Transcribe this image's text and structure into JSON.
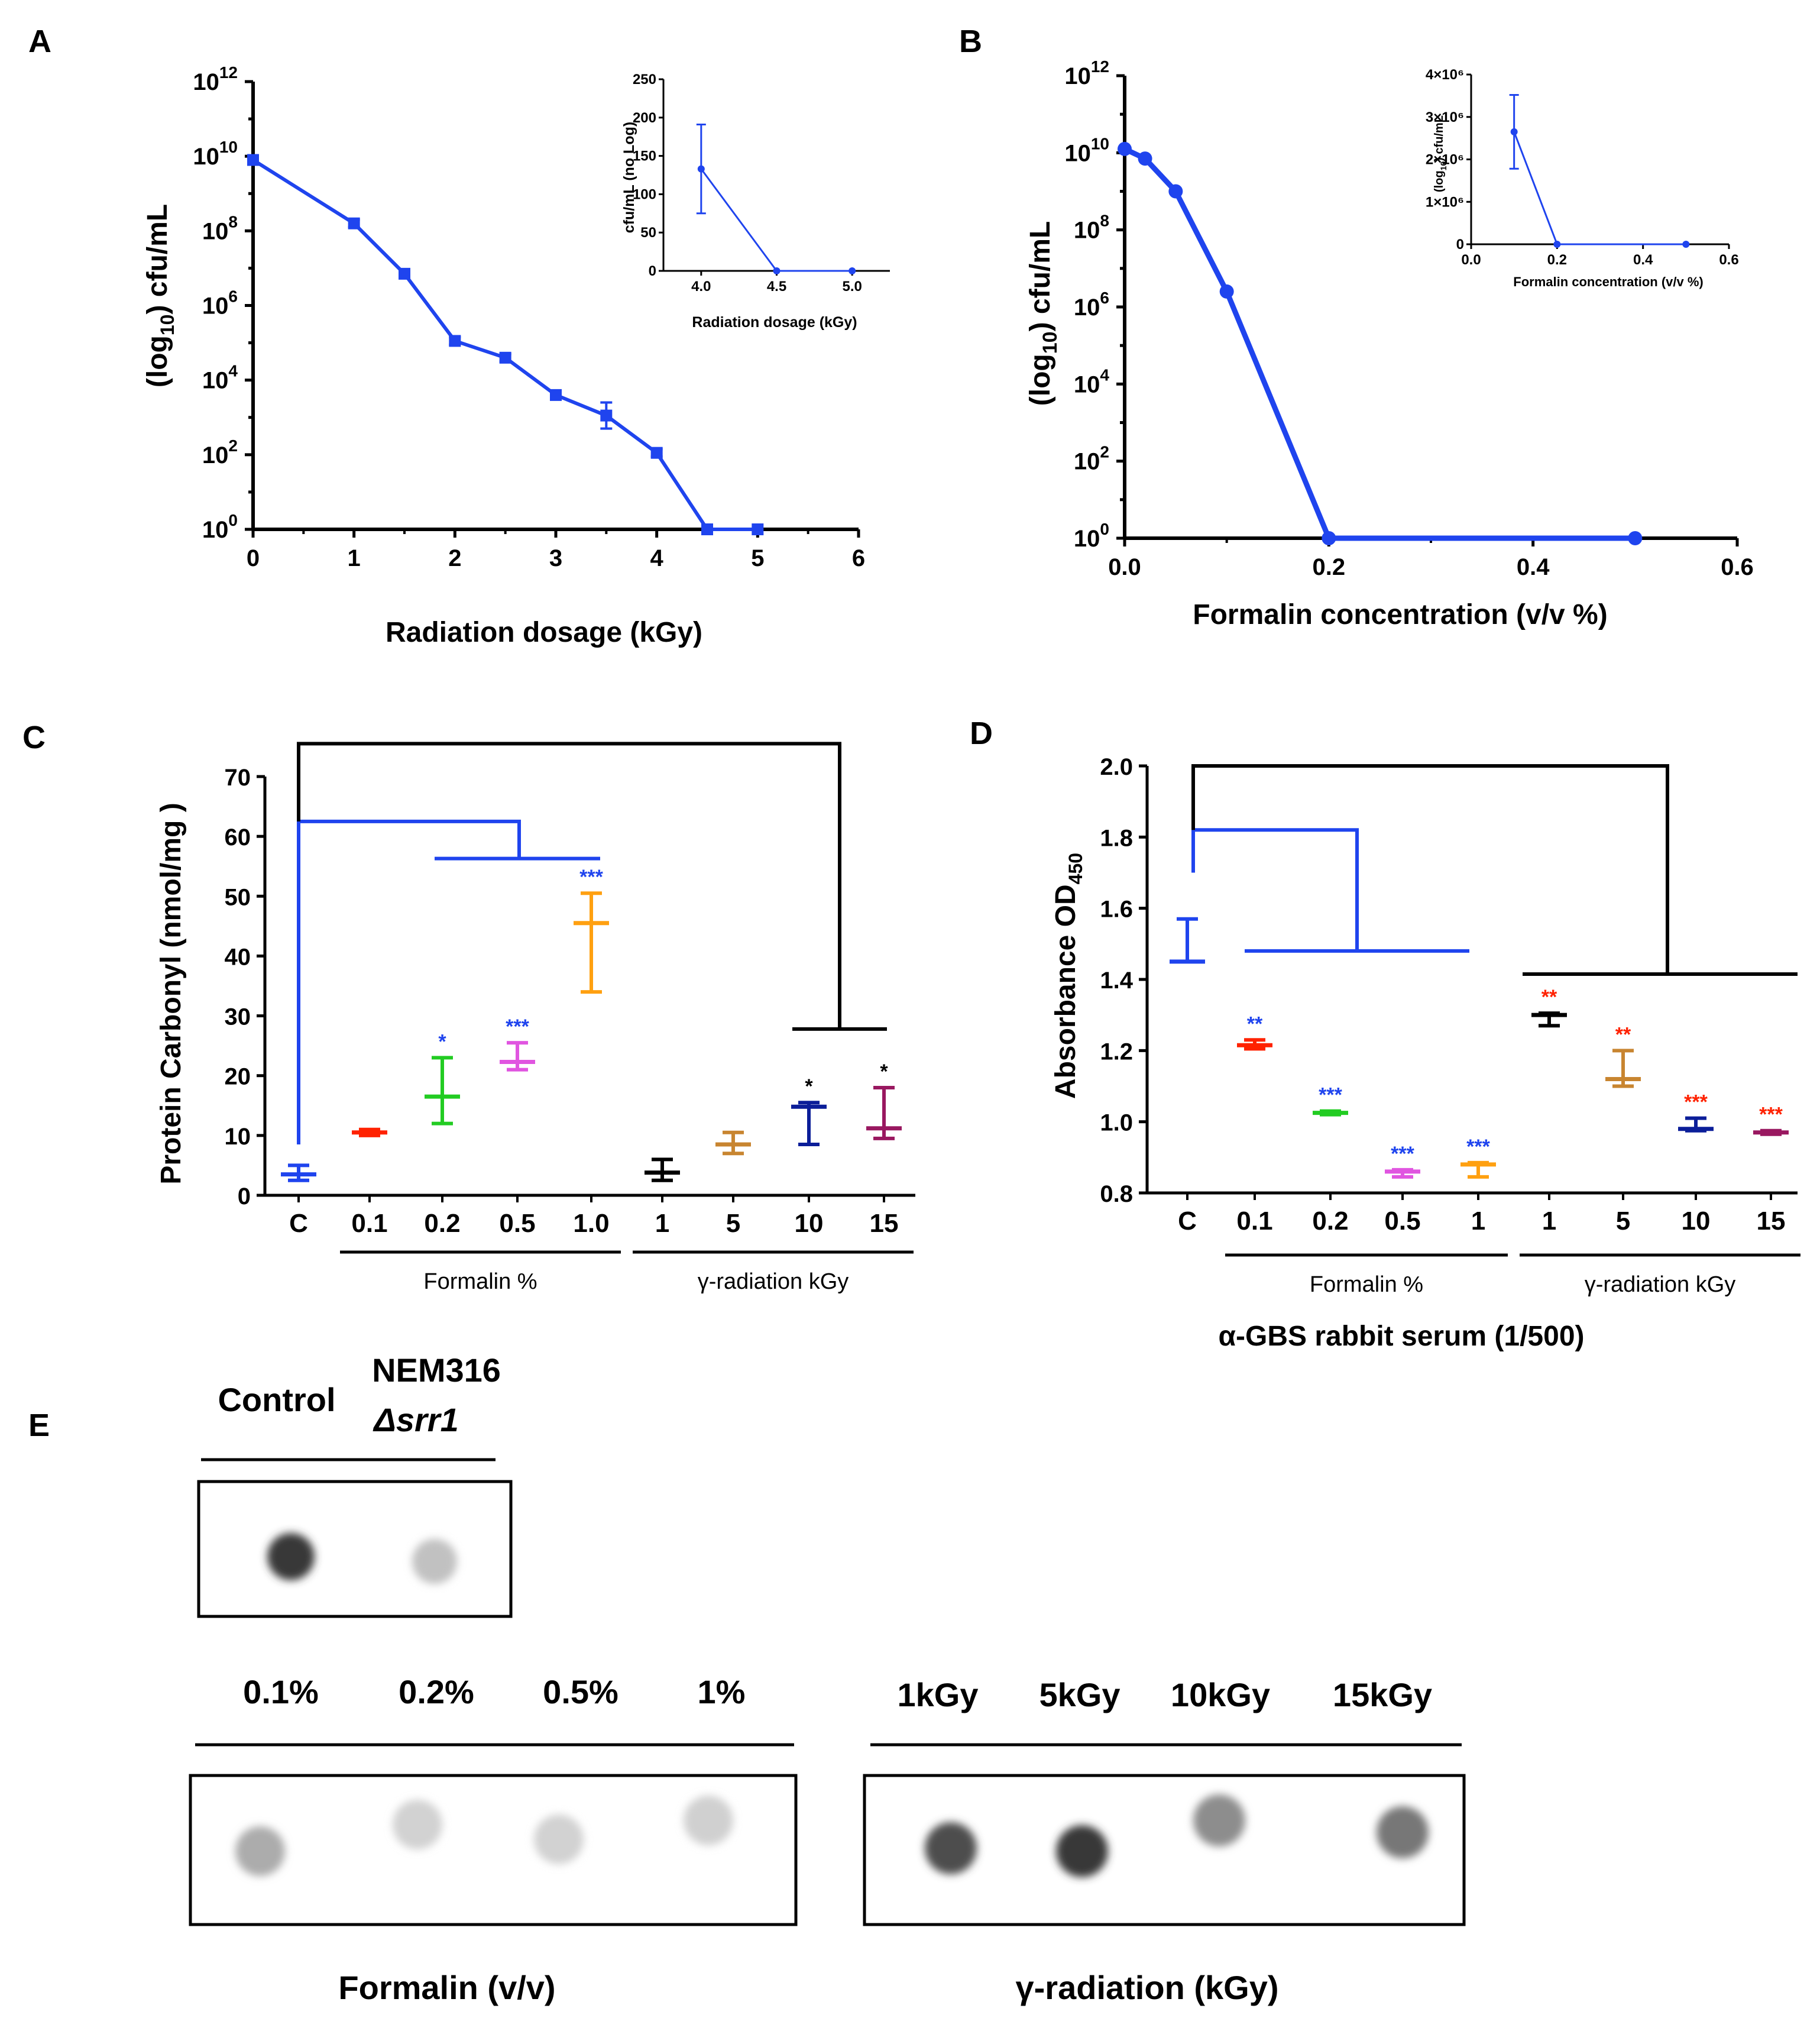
{
  "chart_data": [
    {
      "id": "A",
      "type": "line",
      "panel_label": "A",
      "xlabel": "Radiation dosage (kGy)",
      "ylabel": "(log10) cfu/mL",
      "yscale": "log",
      "xlim": [
        0,
        6
      ],
      "ylim_exponent": [
        0,
        12
      ],
      "x_ticks": [
        "0",
        "1",
        "2",
        "3",
        "4",
        "5",
        "6"
      ],
      "y_tick_exponents": [
        "0",
        "2",
        "4",
        "6",
        "8",
        "10",
        "12"
      ],
      "color": "#1f44ee",
      "x": [
        0,
        1,
        1.5,
        2,
        2.5,
        3,
        3.5,
        4,
        4.5,
        5
      ],
      "y_log10": [
        9.9,
        8.2,
        6.85,
        5.05,
        4.6,
        3.6,
        3.05,
        2.05,
        0,
        0
      ],
      "err_log10": [
        0,
        0.1,
        0.1,
        0.1,
        0.1,
        0.1,
        0.35,
        0.1,
        0,
        0
      ],
      "inset": {
        "type": "line",
        "xlabel": "Radiation dosage (kGy)",
        "ylabel": "cfu/mL (no Log)",
        "x": [
          4.0,
          4.5,
          5.0
        ],
        "y": [
          133,
          0,
          0
        ],
        "err": [
          58,
          0,
          0
        ],
        "xlim": [
          3.75,
          5.25
        ],
        "ylim": [
          0,
          250
        ],
        "x_ticks": [
          "4.0",
          "4.5",
          "5.0"
        ],
        "y_ticks": [
          "0",
          "50",
          "100",
          "150",
          "200",
          "250"
        ]
      }
    },
    {
      "id": "B",
      "type": "line",
      "panel_label": "B",
      "xlabel": "Formalin concentration (v/v %)",
      "ylabel": "(log10) cfu/mL",
      "yscale": "log",
      "xlim": [
        0,
        0.6
      ],
      "ylim_exponent": [
        0,
        12
      ],
      "x_ticks": [
        "0.0",
        "0.2",
        "0.4",
        "0.6"
      ],
      "y_tick_exponents": [
        "0",
        "2",
        "4",
        "6",
        "8",
        "10",
        "12"
      ],
      "color": "#1f44ee",
      "x": [
        0,
        0.02,
        0.05,
        0.1,
        0.2,
        0.5
      ],
      "y_log10": [
        10.1,
        9.85,
        9.0,
        6.4,
        0,
        0
      ],
      "inset": {
        "type": "line",
        "xlabel": "Formalin concentration (v/v %)",
        "ylabel": "(log10) cfu/mL",
        "x": [
          0.1,
          0.2,
          0.5
        ],
        "y": [
          2650000,
          0,
          0
        ],
        "err": [
          870000,
          0,
          0
        ],
        "xlim": [
          0,
          0.6
        ],
        "ylim": [
          0,
          4000000
        ],
        "x_ticks": [
          "0.0",
          "0.2",
          "0.4",
          "0.6"
        ],
        "y_ticks": [
          "0",
          "1×10⁶",
          "2×10⁶",
          "3×10⁶",
          "4×10⁶"
        ]
      }
    },
    {
      "id": "C",
      "type": "scatter",
      "panel_label": "C",
      "ylabel": "Protein Carbonyl (nmol/mg )",
      "ylim": [
        0,
        70
      ],
      "y_ticks": [
        "0",
        "10",
        "20",
        "30",
        "40",
        "50",
        "60",
        "70"
      ],
      "categories": [
        "C",
        "0.1",
        "0.2",
        "0.5",
        "1.0",
        "1",
        "5",
        "10",
        "15"
      ],
      "groups": [
        {
          "label": "Formalin %",
          "from": 1,
          "to": 4
        },
        {
          "label": "γ-radiation kGy",
          "from": 5,
          "to": 8
        }
      ],
      "points": [
        {
          "cat": "C",
          "mean": 3.5,
          "low": 2.5,
          "high": 5.0,
          "color": "#1f44ee",
          "stars": ""
        },
        {
          "cat": "0.1",
          "mean": 10.5,
          "low": 10.0,
          "high": 11.0,
          "color": "#ff2200",
          "stars": ""
        },
        {
          "cat": "0.2",
          "mean": 16.5,
          "low": 12.0,
          "high": 23.0,
          "color": "#22cc22",
          "stars": "*"
        },
        {
          "cat": "0.5",
          "mean": 22.3,
          "low": 21.0,
          "high": 25.5,
          "color": "#e055e0",
          "stars": "***"
        },
        {
          "cat": "1.0",
          "mean": 45.5,
          "low": 34.0,
          "high": 50.5,
          "color": "#ffa010",
          "stars": "***"
        },
        {
          "cat": "1",
          "mean": 3.8,
          "low": 2.5,
          "high": 6.0,
          "color": "#000000",
          "stars": ""
        },
        {
          "cat": "5",
          "mean": 8.5,
          "low": 7.0,
          "high": 10.5,
          "color": "#c88530",
          "stars": ""
        },
        {
          "cat": "10",
          "mean": 14.8,
          "low": 8.5,
          "high": 15.5,
          "color": "#0b1e99",
          "stars": "*"
        },
        {
          "cat": "15",
          "mean": 11.2,
          "low": 9.5,
          "high": 18.0,
          "color": "#991860",
          "stars": "*"
        }
      ],
      "star_colors": [
        "#1f44ee",
        "#1f44ee",
        "#1f44ee",
        "#000000",
        "#000000"
      ]
    },
    {
      "id": "D",
      "type": "scatter",
      "panel_label": "D",
      "ylabel": "Absorbance OD450",
      "xlabel": "α-GBS rabbit serum (1/500)",
      "ylim": [
        0.8,
        2.0
      ],
      "y_ticks": [
        "0.8",
        "1.0",
        "1.2",
        "1.4",
        "1.6",
        "1.8",
        "2.0"
      ],
      "categories": [
        "C",
        "0.1",
        "0.2",
        "0.5",
        "1",
        "1",
        "5",
        "10",
        "15"
      ],
      "groups": [
        {
          "label": "Formalin %",
          "from": 1,
          "to": 4
        },
        {
          "label": "γ-radiation kGy",
          "from": 5,
          "to": 8
        }
      ],
      "points": [
        {
          "cat": "C",
          "mean": 1.45,
          "low": 1.45,
          "high": 1.57,
          "color": "#1f44ee",
          "stars": ""
        },
        {
          "cat": "0.1",
          "mean": 1.215,
          "low": 1.205,
          "high": 1.23,
          "color": "#ff2200",
          "stars": "**"
        },
        {
          "cat": "0.2",
          "mean": 1.025,
          "low": 1.02,
          "high": 1.03,
          "color": "#22cc22",
          "stars": "***"
        },
        {
          "cat": "0.5",
          "mean": 0.86,
          "low": 0.845,
          "high": 0.865,
          "color": "#e055e0",
          "stars": "***"
        },
        {
          "cat": "1",
          "mean": 0.88,
          "low": 0.845,
          "high": 0.885,
          "color": "#ffa010",
          "stars": "***"
        },
        {
          "cat": "1",
          "mean": 1.3,
          "low": 1.27,
          "high": 1.305,
          "color": "#000000",
          "stars": "**"
        },
        {
          "cat": "5",
          "mean": 1.12,
          "low": 1.1,
          "high": 1.2,
          "color": "#c88530",
          "stars": "**"
        },
        {
          "cat": "10",
          "mean": 0.98,
          "low": 0.975,
          "high": 1.01,
          "color": "#0b1e99",
          "stars": "***"
        },
        {
          "cat": "15",
          "mean": 0.97,
          "low": 0.965,
          "high": 0.975,
          "color": "#991860",
          "stars": "***"
        }
      ],
      "star_colors": [
        "#1f44ee",
        "#1f44ee",
        "#1f44ee",
        "#1f44ee",
        "#ff2200",
        "#ff2200",
        "#ff2200",
        "#ff2200"
      ]
    }
  ],
  "panel_e": {
    "label": "E",
    "top_labels": {
      "control": "Control",
      "mutant_line1": "NEM316",
      "mutant_line2": "Δsrr1"
    },
    "formalin_labels": [
      "0.1%",
      "0.2%",
      "0.5%",
      "1%"
    ],
    "radiation_labels": [
      "1kGy",
      "5kGy",
      "10kGy",
      "15kGy"
    ],
    "formalin_caption": "Formalin (v/v)",
    "radiation_caption": "γ-radiation (kGy)",
    "dot_intensity_top": [
      0.85,
      0.2
    ],
    "dot_intensity_formalin": [
      0.3,
      0.12,
      0.12,
      0.13
    ],
    "dot_intensity_radiation": [
      0.75,
      0.85,
      0.45,
      0.55
    ]
  }
}
